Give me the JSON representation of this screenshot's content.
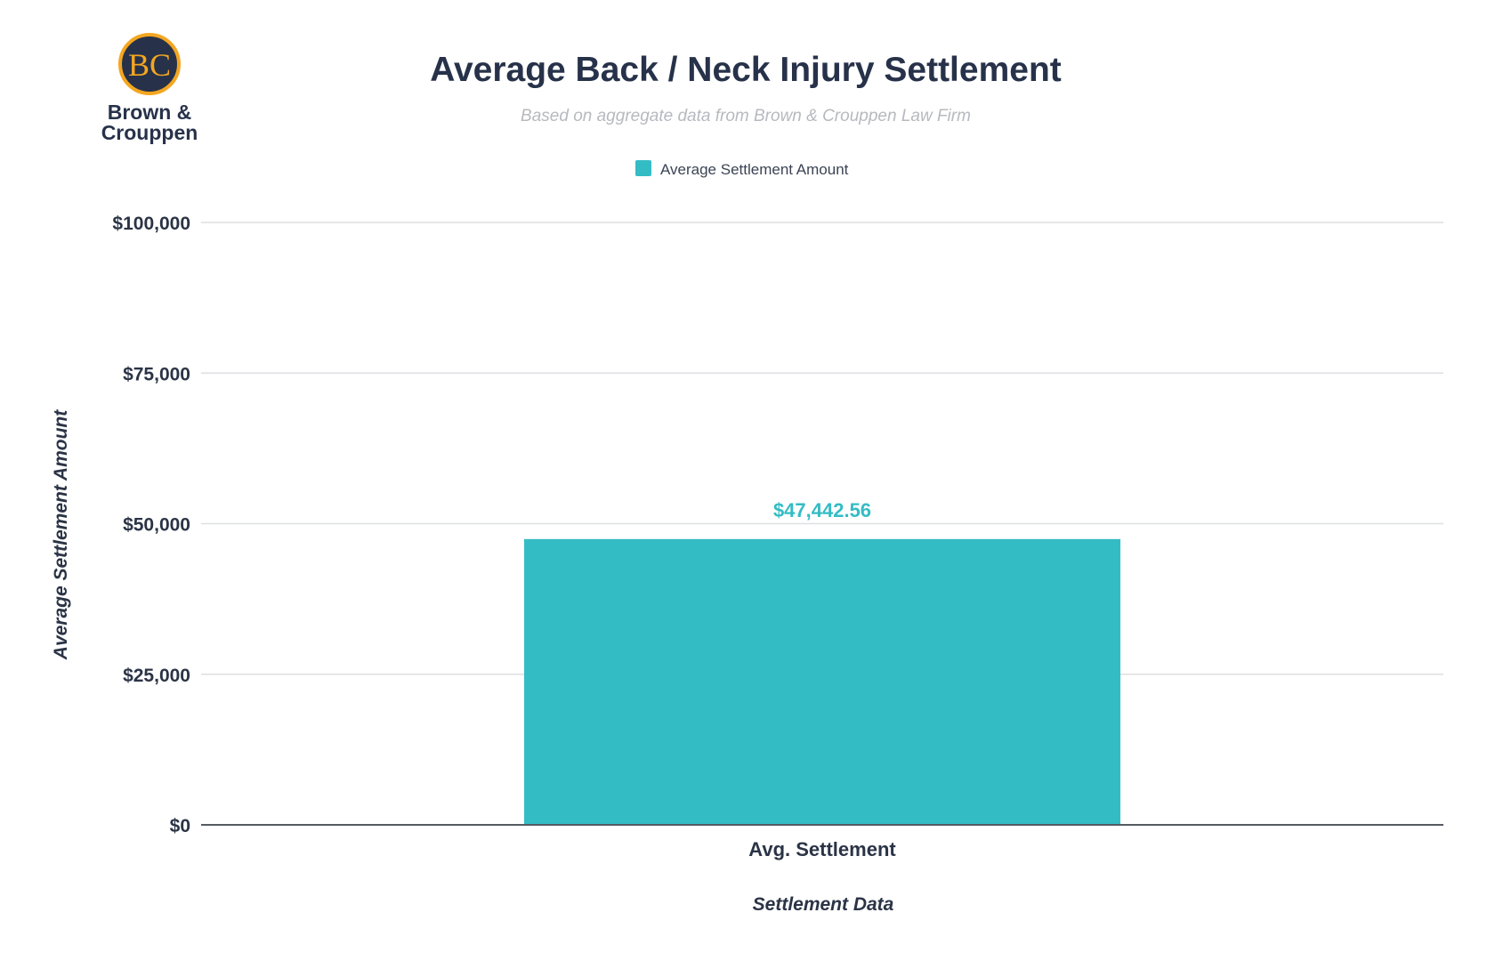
{
  "logo": {
    "monogram": "BC",
    "line1": "Brown &",
    "line2": "Crouppen",
    "ring_color": "#f4a620",
    "fill_color": "#27324a"
  },
  "chart_data": {
    "type": "bar",
    "title": "Average Back / Neck Injury Settlement",
    "subtitle": "Based on aggregate data from Brown & Crouppen Law Firm",
    "legend": "Average Settlement Amount",
    "legend_position": "top-center",
    "categories": [
      "Avg. Settlement"
    ],
    "series": [
      {
        "name": "Average Settlement Amount",
        "values": [
          47442.56
        ],
        "color": "#34bcc4"
      }
    ],
    "data_labels": [
      "$47,442.56"
    ],
    "data_label_color": "#34bcc4",
    "xlabel": "Settlement Data",
    "ylabel": "Average Settlement Amount",
    "ylim": [
      0,
      100000
    ],
    "yticks": [
      0,
      25000,
      50000,
      75000,
      100000
    ],
    "ytick_labels": [
      "$0",
      "$25,000",
      "$50,000",
      "$75,000",
      "$100,000"
    ],
    "grid": true,
    "grid_color": "#dddfe2",
    "axis_color": "#555a63"
  }
}
